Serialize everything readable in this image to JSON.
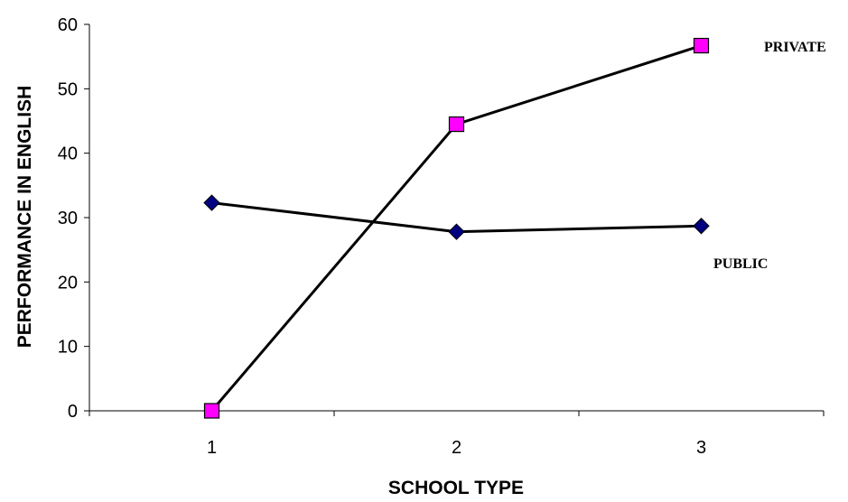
{
  "chart_data": {
    "type": "line",
    "title": "",
    "xlabel": "SCHOOL TYPE",
    "ylabel": "PERFORMANCE IN ENGLISH",
    "categories": [
      "1",
      "2",
      "3"
    ],
    "ylim": [
      0,
      60
    ],
    "yticks": [
      "0",
      "10",
      "20",
      "30",
      "40",
      "50",
      "60"
    ],
    "grid": false,
    "legend": "inline-labels",
    "series": [
      {
        "name": "PRIVATE",
        "values": [
          0,
          44.5,
          56.7
        ],
        "marker": "square",
        "marker_color": "#ff00ff",
        "line_color": "#000000"
      },
      {
        "name": "PUBLIC",
        "values": [
          32.3,
          27.8,
          28.7
        ],
        "marker": "diamond",
        "marker_color": "#000080",
        "line_color": "#000000"
      }
    ]
  }
}
